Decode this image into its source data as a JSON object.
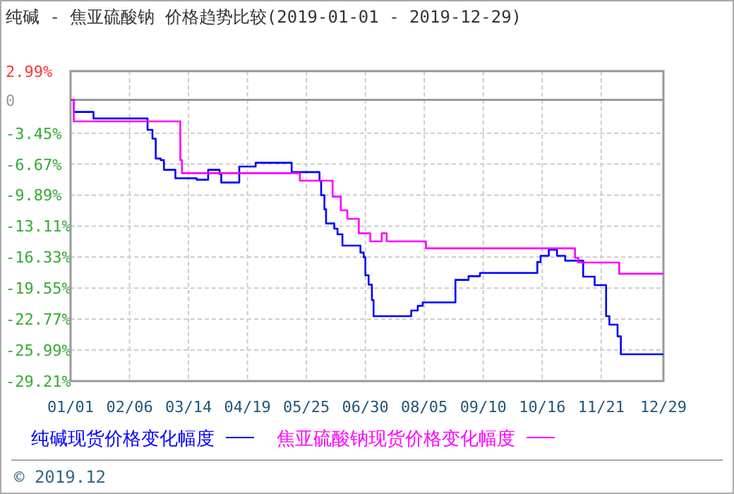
{
  "chart_data": {
    "type": "step",
    "title": "纯碱 - 焦亚硫酸钠 价格趋势比较(2019-01-01 - 2019-12-29)",
    "xlim": [
      "2019-01-01",
      "2019-12-29"
    ],
    "xticks": [
      {
        "value": "2019-01-01",
        "label": "01/01"
      },
      {
        "value": "2019-02-06",
        "label": "02/06"
      },
      {
        "value": "2019-03-14",
        "label": "03/14"
      },
      {
        "value": "2019-04-19",
        "label": "04/19"
      },
      {
        "value": "2019-05-25",
        "label": "05/25"
      },
      {
        "value": "2019-06-30",
        "label": "06/30"
      },
      {
        "value": "2019-08-05",
        "label": "08/05"
      },
      {
        "value": "2019-09-10",
        "label": "09/10"
      },
      {
        "value": "2019-10-16",
        "label": "10/16"
      },
      {
        "value": "2019-11-21",
        "label": "11/21"
      },
      {
        "value": "2019-12-29",
        "label": "12/29"
      }
    ],
    "ylim": [
      -29.21,
      2.99
    ],
    "yticks": [
      {
        "value": 2.99,
        "label": "2.99%"
      },
      0,
      {
        "value": -3.45,
        "label": "-3.45%"
      },
      {
        "value": -6.67,
        "label": "-6.67%"
      },
      {
        "value": -9.89,
        "label": "-9.89%"
      },
      {
        "value": -13.11,
        "label": "-13.11%"
      },
      {
        "value": -16.33,
        "label": "-16.33%"
      },
      {
        "value": -19.55,
        "label": "-19.55%"
      },
      {
        "value": -22.77,
        "label": "-22.77%"
      },
      {
        "value": -25.99,
        "label": "-25.99%"
      },
      {
        "value": -29.21,
        "label": "-29.21%"
      }
    ],
    "grid": true,
    "legend": "bottom",
    "ref_lines": [
      {
        "axis": "y",
        "value": 0,
        "color": "#999999"
      }
    ],
    "series": [
      {
        "name": "纯碱现货价格变化幅度",
        "color": "#0000ff",
        "x": [
          "2019-01-01",
          "2019-01-03",
          "2019-01-15",
          "2019-02-17",
          "2019-02-20",
          "2019-02-22",
          "2019-02-25",
          "2019-02-27",
          "2019-03-06",
          "2019-03-19",
          "2019-03-26",
          "2019-04-02",
          "2019-04-03",
          "2019-04-14",
          "2019-04-24",
          "2019-05-16",
          "2019-06-02",
          "2019-06-03",
          "2019-06-05",
          "2019-06-06",
          "2019-06-11",
          "2019-06-13",
          "2019-06-16",
          "2019-06-27",
          "2019-06-29",
          "2019-06-30",
          "2019-07-02",
          "2019-07-04",
          "2019-07-05",
          "2019-07-28",
          "2019-08-01",
          "2019-08-04",
          "2019-08-24",
          "2019-09-01",
          "2019-09-08",
          "2019-10-13",
          "2019-10-15",
          "2019-10-20",
          "2019-10-25",
          "2019-10-30",
          "2019-11-10",
          "2019-11-17",
          "2019-11-24",
          "2019-11-26",
          "2019-12-01",
          "2019-12-03",
          "2019-12-29"
        ],
        "values": [
          0,
          -1.25,
          -1.93,
          -3.11,
          -4.03,
          -6.09,
          -6.25,
          -7.26,
          -8.14,
          -8.29,
          -7.26,
          -7.7,
          -8.58,
          -6.92,
          -6.53,
          -7.5,
          -8.4,
          -9.9,
          -11.37,
          -12.83,
          -13.37,
          -13.96,
          -15.13,
          -15.86,
          -16.35,
          -18.21,
          -19.19,
          -20.8,
          -22.46,
          -21.88,
          -21.39,
          -21.04,
          -18.7,
          -18.31,
          -17.97,
          -16.85,
          -16.2,
          -15.57,
          -16.2,
          -16.7,
          -18.36,
          -19.24,
          -22.46,
          -23.34,
          -24.56,
          -26.42,
          -26.42
        ]
      },
      {
        "name": "焦亚硫酸钠现货价格变化幅度",
        "color": "#ff00ff",
        "x": [
          "2019-01-01",
          "2019-01-03",
          "2019-03-09",
          "2019-03-10",
          "2019-05-21",
          "2019-06-10",
          "2019-06-15",
          "2019-06-19",
          "2019-06-26",
          "2019-07-03",
          "2019-07-10",
          "2019-07-13",
          "2019-08-06",
          "2019-11-05",
          "2019-11-07",
          "2019-12-02",
          "2019-12-29"
        ],
        "values": [
          0,
          -2.23,
          -6.25,
          -7.61,
          -8.39,
          -10.05,
          -11.47,
          -12.35,
          -13.86,
          -14.69,
          -13.86,
          -14.69,
          -15.42,
          -16.4,
          -16.89,
          -18.06,
          -18.06
        ]
      }
    ],
    "annotations": [
      "© 2019.12"
    ]
  }
}
